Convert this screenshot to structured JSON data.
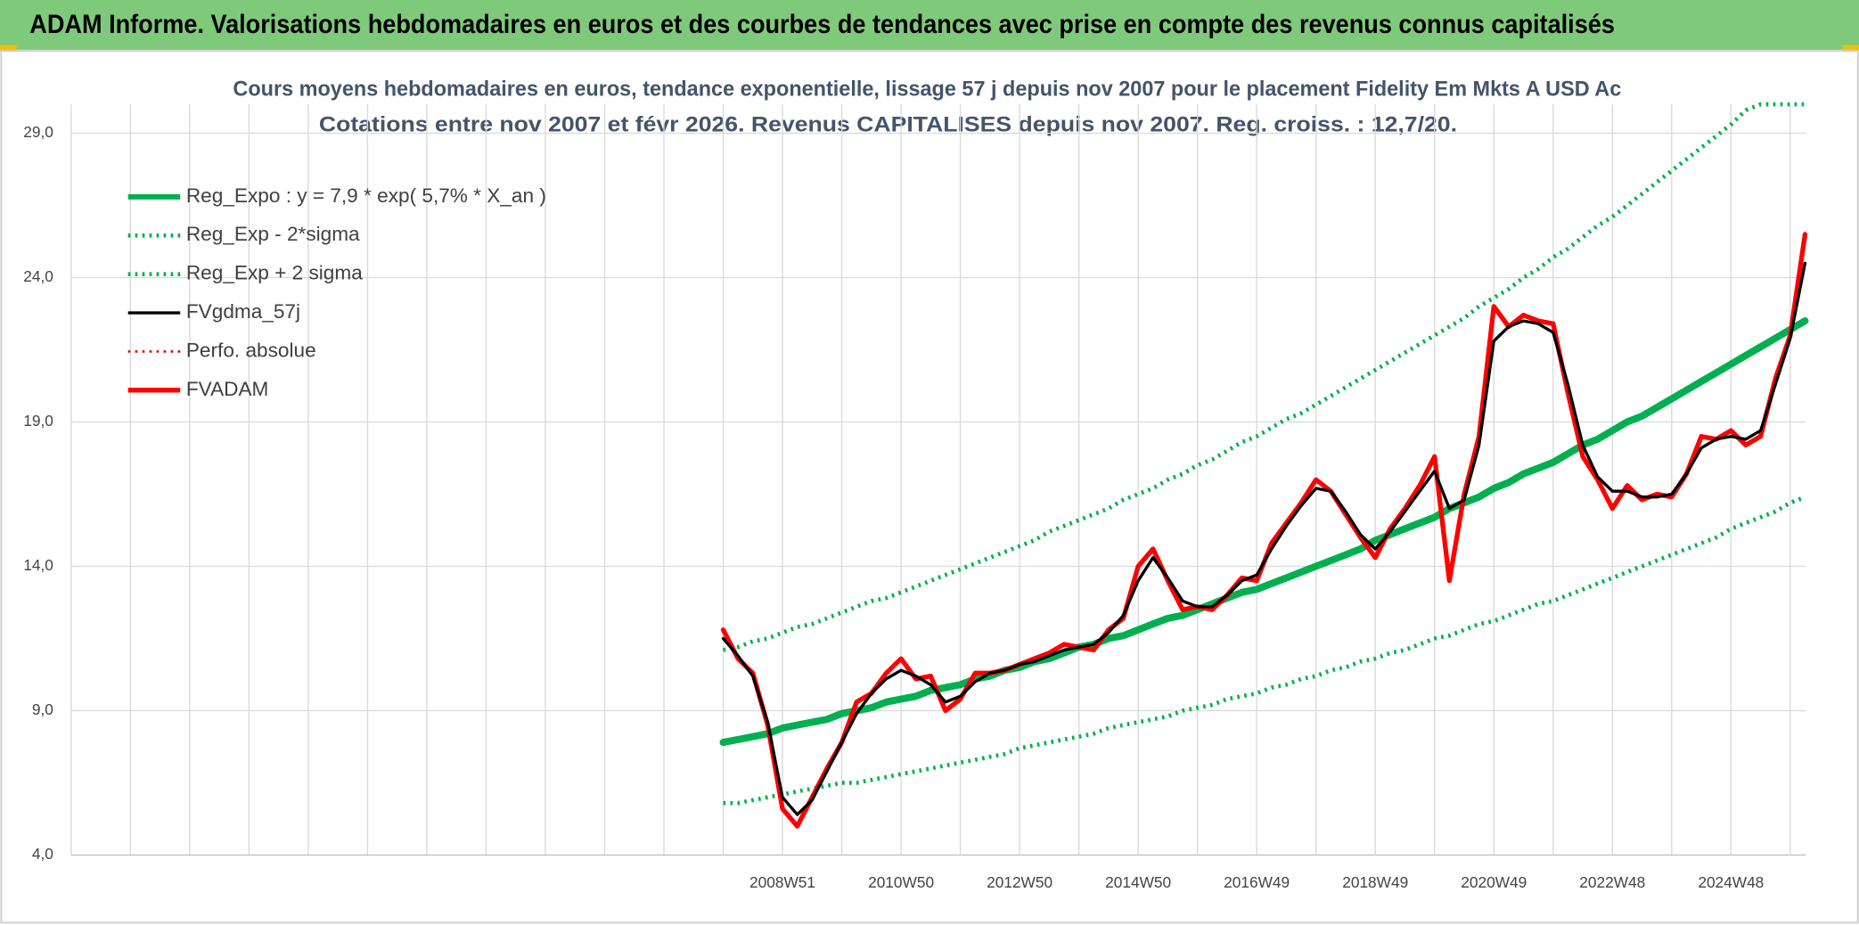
{
  "banner": "ADAM Informe. Valorisations hebdomadaires en euros et des courbes de tendances avec prise en compte des revenus connus capitalisés",
  "chart_data": {
    "type": "line",
    "title": "Cours moyens hebdomadaires en euros, tendance exponentielle, lissage 57 j depuis nov 2007 pour le placement Fidelity Em Mkts A USD Ac",
    "subtitle": "Cotations entre nov 2007 et févr 2026. Revenus CAPITALISES depuis nov 2007. Reg. croiss. : 12,7/20.",
    "categories": [
      null,
      null,
      null,
      null,
      "2008W51",
      null,
      null,
      null,
      null,
      null,
      null,
      null,
      "2010W50",
      null,
      null,
      null,
      null,
      null,
      null,
      null,
      "2012W50",
      null,
      null,
      null,
      null,
      null,
      null,
      null,
      "2014W50",
      null,
      null,
      null,
      null,
      null,
      null,
      null,
      "2016W49",
      null,
      null,
      null,
      null,
      null,
      null,
      null,
      "2018W49",
      null,
      null,
      null,
      null,
      null,
      null,
      null,
      "2020W49",
      null,
      null,
      null,
      null,
      null,
      null,
      null,
      "2022W48",
      null,
      null,
      null,
      null,
      null,
      null,
      null,
      "2024W48",
      null,
      null,
      null,
      null,
      null
    ],
    "ylim": [
      4,
      30
    ],
    "yticks": [
      {
        "value": 4,
        "label": "4,0"
      },
      {
        "value": 9,
        "label": "9,0"
      },
      {
        "value": 14,
        "label": "14,0"
      },
      {
        "value": 19,
        "label": "19,0"
      },
      {
        "value": 24,
        "label": "24,0"
      },
      {
        "value": 29,
        "label": "29,0"
      }
    ],
    "grid": true,
    "series": [
      {
        "name": "Reg_Expo : y = 7,9 * exp( 5,7% *  X_an )",
        "color": "#00b050",
        "style": "solid",
        "width": 6,
        "values": [
          7.9,
          8.0,
          8.1,
          8.2,
          8.4,
          8.5,
          8.6,
          8.7,
          8.9,
          9.0,
          9.1,
          9.3,
          9.4,
          9.5,
          9.7,
          9.8,
          9.9,
          10.1,
          10.2,
          10.4,
          10.5,
          10.7,
          10.8,
          11.0,
          11.2,
          11.3,
          11.5,
          11.6,
          11.8,
          12.0,
          12.2,
          12.3,
          12.5,
          12.7,
          12.9,
          13.1,
          13.2,
          13.4,
          13.6,
          13.8,
          14.0,
          14.2,
          14.4,
          14.6,
          14.9,
          15.1,
          15.3,
          15.5,
          15.7,
          16.0,
          16.2,
          16.4,
          16.7,
          16.9,
          17.2,
          17.4,
          17.6,
          17.9,
          18.2,
          18.4,
          18.7,
          19.0,
          19.2,
          19.5,
          19.8,
          20.1,
          20.4,
          20.7,
          21.0,
          21.3,
          21.6,
          21.9,
          22.2,
          22.5
        ]
      },
      {
        "name": "Reg_Exp - 2*sigma",
        "color": "#00b050",
        "style": "dotted",
        "width": 3.5,
        "values": [
          5.8,
          5.8,
          5.9,
          6.0,
          6.1,
          6.2,
          6.3,
          6.4,
          6.5,
          6.5,
          6.6,
          6.7,
          6.8,
          6.9,
          7.0,
          7.1,
          7.2,
          7.3,
          7.4,
          7.5,
          7.7,
          7.8,
          7.9,
          8.0,
          8.1,
          8.2,
          8.4,
          8.5,
          8.6,
          8.7,
          8.8,
          9.0,
          9.1,
          9.2,
          9.4,
          9.5,
          9.6,
          9.8,
          9.9,
          10.1,
          10.2,
          10.4,
          10.5,
          10.7,
          10.8,
          11.0,
          11.1,
          11.3,
          11.5,
          11.6,
          11.8,
          12.0,
          12.1,
          12.3,
          12.5,
          12.7,
          12.8,
          13.0,
          13.2,
          13.4,
          13.6,
          13.8,
          14.0,
          14.2,
          14.4,
          14.6,
          14.8,
          15.0,
          15.3,
          15.5,
          15.7,
          15.9,
          16.2,
          16.4
        ]
      },
      {
        "name": "Reg_Exp + 2 sigma",
        "color": "#00b050",
        "style": "dotted",
        "width": 3.5,
        "values": [
          11.1,
          11.2,
          11.4,
          11.5,
          11.7,
          11.9,
          12.0,
          12.2,
          12.4,
          12.6,
          12.8,
          12.9,
          13.1,
          13.3,
          13.5,
          13.7,
          13.9,
          14.1,
          14.3,
          14.5,
          14.7,
          14.9,
          15.2,
          15.4,
          15.6,
          15.8,
          16.0,
          16.3,
          16.5,
          16.7,
          17.0,
          17.2,
          17.5,
          17.7,
          18.0,
          18.3,
          18.5,
          18.8,
          19.1,
          19.3,
          19.6,
          19.9,
          20.2,
          20.5,
          20.8,
          21.1,
          21.4,
          21.7,
          22.0,
          22.3,
          22.6,
          23.0,
          23.3,
          23.6,
          24.0,
          24.3,
          24.7,
          25.0,
          25.4,
          25.8,
          26.1,
          26.5,
          26.9,
          27.3,
          27.7,
          28.1,
          28.5,
          28.9,
          29.3,
          29.8,
          30.0,
          30.0,
          30.0,
          30.0
        ]
      },
      {
        "name": "FVgdma_57j",
        "color": "#000000",
        "style": "solid",
        "width": 2.5,
        "values": [
          11.5,
          10.9,
          10.2,
          8.6,
          6.0,
          5.4,
          5.9,
          6.9,
          7.9,
          8.9,
          9.6,
          10.1,
          10.4,
          10.2,
          9.9,
          9.3,
          9.5,
          10.0,
          10.3,
          10.4,
          10.6,
          10.7,
          10.9,
          11.1,
          11.2,
          11.3,
          11.7,
          12.3,
          13.5,
          14.3,
          13.6,
          12.8,
          12.6,
          12.6,
          13.0,
          13.5,
          13.7,
          14.6,
          15.4,
          16.1,
          16.7,
          16.6,
          15.9,
          15.1,
          14.6,
          15.2,
          15.9,
          16.6,
          17.3,
          16.0,
          16.3,
          18.2,
          21.8,
          22.3,
          22.5,
          22.4,
          22.1,
          20.3,
          18.2,
          17.1,
          16.6,
          16.6,
          16.4,
          16.4,
          16.5,
          17.2,
          18.1,
          18.4,
          18.5,
          18.4,
          18.7,
          20.3,
          21.9,
          24.5
        ]
      },
      {
        "name": "Perfo. absolue",
        "color": "#e00000",
        "style": "dotted",
        "width": 2
      },
      {
        "name": "FVADAM",
        "color": "#ff0000",
        "style": "solid",
        "width": 4,
        "values": [
          11.8,
          10.8,
          10.3,
          8.5,
          5.6,
          5.0,
          6.0,
          7.0,
          7.9,
          9.3,
          9.6,
          10.3,
          10.8,
          10.1,
          10.2,
          9.0,
          9.4,
          10.3,
          10.3,
          10.4,
          10.6,
          10.8,
          11.0,
          11.3,
          11.2,
          11.1,
          11.8,
          12.2,
          14.0,
          14.6,
          13.5,
          12.5,
          12.6,
          12.5,
          13.0,
          13.6,
          13.5,
          14.8,
          15.5,
          16.2,
          17.0,
          16.6,
          15.8,
          15.0,
          14.3,
          15.3,
          16.0,
          16.8,
          17.8,
          13.5,
          16.5,
          18.5,
          23.0,
          22.3,
          22.7,
          22.5,
          22.4,
          20.0,
          17.8,
          17.0,
          16.0,
          16.8,
          16.3,
          16.5,
          16.4,
          17.2,
          18.5,
          18.4,
          18.7,
          18.2,
          18.5,
          20.5,
          22.0,
          25.5
        ]
      }
    ]
  }
}
